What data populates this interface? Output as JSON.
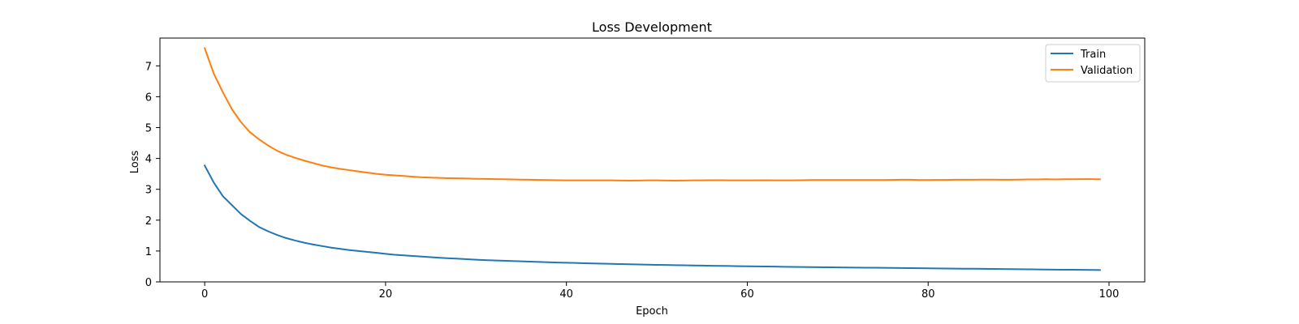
{
  "chart_data": {
    "type": "line",
    "title": "Loss Development",
    "xlabel": "Epoch",
    "ylabel": "Loss",
    "xlim": [
      -4.95,
      103.95
    ],
    "ylim": [
      0,
      7.9
    ],
    "xticks": [
      0,
      20,
      40,
      60,
      80,
      100
    ],
    "yticks": [
      0,
      1,
      2,
      3,
      4,
      5,
      6,
      7
    ],
    "grid": false,
    "legend_position": "top-right",
    "colors": {
      "train": "#1f77b4",
      "validation": "#ff7f0e"
    },
    "x": [
      0,
      1,
      2,
      3,
      4,
      5,
      6,
      7,
      8,
      9,
      10,
      11,
      12,
      13,
      14,
      15,
      16,
      17,
      18,
      19,
      20,
      21,
      22,
      23,
      24,
      25,
      26,
      27,
      28,
      29,
      30,
      31,
      32,
      33,
      34,
      35,
      36,
      37,
      38,
      39,
      40,
      41,
      42,
      43,
      44,
      45,
      46,
      47,
      48,
      49,
      50,
      51,
      52,
      53,
      54,
      55,
      56,
      57,
      58,
      59,
      60,
      61,
      62,
      63,
      64,
      65,
      66,
      67,
      68,
      69,
      70,
      71,
      72,
      73,
      74,
      75,
      76,
      77,
      78,
      79,
      80,
      81,
      82,
      83,
      84,
      85,
      86,
      87,
      88,
      89,
      90,
      91,
      92,
      93,
      94,
      95,
      96,
      97,
      98,
      99
    ],
    "series": [
      {
        "name": "Train",
        "color": "#1f77b4",
        "values": [
          3.77,
          3.22,
          2.78,
          2.49,
          2.2,
          1.98,
          1.78,
          1.64,
          1.52,
          1.42,
          1.34,
          1.27,
          1.21,
          1.16,
          1.11,
          1.07,
          1.03,
          1.0,
          0.97,
          0.94,
          0.91,
          0.88,
          0.86,
          0.84,
          0.82,
          0.8,
          0.78,
          0.765,
          0.75,
          0.735,
          0.72,
          0.705,
          0.695,
          0.685,
          0.675,
          0.665,
          0.655,
          0.645,
          0.637,
          0.628,
          0.62,
          0.612,
          0.604,
          0.597,
          0.59,
          0.583,
          0.576,
          0.57,
          0.564,
          0.558,
          0.552,
          0.547,
          0.542,
          0.537,
          0.532,
          0.527,
          0.522,
          0.518,
          0.514,
          0.51,
          0.506,
          0.502,
          0.498,
          0.494,
          0.49,
          0.486,
          0.482,
          0.479,
          0.476,
          0.473,
          0.47,
          0.467,
          0.464,
          0.461,
          0.458,
          0.455,
          0.452,
          0.449,
          0.446,
          0.443,
          0.44,
          0.437,
          0.434,
          0.431,
          0.428,
          0.425,
          0.422,
          0.419,
          0.416,
          0.413,
          0.41,
          0.407,
          0.404,
          0.401,
          0.398,
          0.395,
          0.392,
          0.389,
          0.386,
          0.383
        ]
      },
      {
        "name": "Validation",
        "color": "#ff7f0e",
        "values": [
          7.57,
          6.75,
          6.15,
          5.6,
          5.18,
          4.85,
          4.62,
          4.42,
          4.25,
          4.12,
          4.02,
          3.93,
          3.85,
          3.77,
          3.71,
          3.66,
          3.62,
          3.58,
          3.54,
          3.5,
          3.47,
          3.45,
          3.43,
          3.41,
          3.39,
          3.38,
          3.37,
          3.36,
          3.355,
          3.35,
          3.34,
          3.335,
          3.33,
          3.325,
          3.32,
          3.315,
          3.31,
          3.305,
          3.3,
          3.295,
          3.29,
          3.29,
          3.29,
          3.29,
          3.29,
          3.29,
          3.285,
          3.28,
          3.285,
          3.29,
          3.29,
          3.285,
          3.28,
          3.285,
          3.29,
          3.29,
          3.295,
          3.295,
          3.29,
          3.29,
          3.29,
          3.29,
          3.295,
          3.29,
          3.29,
          3.29,
          3.295,
          3.3,
          3.3,
          3.3,
          3.3,
          3.3,
          3.3,
          3.3,
          3.3,
          3.3,
          3.305,
          3.31,
          3.31,
          3.3,
          3.3,
          3.305,
          3.305,
          3.31,
          3.31,
          3.31,
          3.315,
          3.315,
          3.31,
          3.31,
          3.315,
          3.32,
          3.32,
          3.325,
          3.32,
          3.325,
          3.325,
          3.33,
          3.33,
          3.325
        ]
      }
    ]
  }
}
